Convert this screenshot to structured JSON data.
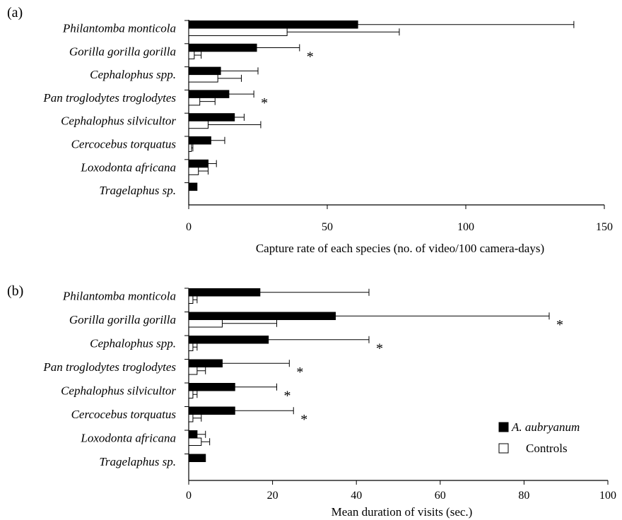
{
  "legend": {
    "items": [
      {
        "label": "A. aubryanum",
        "italic": true,
        "fill": "#000000"
      },
      {
        "label": "Controls",
        "italic": false,
        "fill": "#ffffff"
      }
    ]
  },
  "colors": {
    "treatment": "#000000",
    "control": "#ffffff",
    "stroke": "#000000"
  },
  "chart_data": [
    {
      "type": "bar",
      "orientation": "horizontal",
      "panel_label": "(a)",
      "categories": [
        "Philantomba monticola",
        "Gorilla gorilla gorilla",
        "Cephalophus spp.",
        "Pan troglodytes troglodytes",
        "Cephalophus silvicultor",
        "Cercocebus torquatus",
        "Loxodonta africana",
        "Tragelaphus sp."
      ],
      "series": [
        {
          "name": "A. aubryanum",
          "values": [
            61,
            24.5,
            11.5,
            14.5,
            16.5,
            8,
            7,
            3
          ],
          "error": [
            78,
            15.5,
            13.5,
            9,
            3.5,
            5,
            3,
            0
          ]
        },
        {
          "name": "Controls",
          "values": [
            35.5,
            2,
            10.5,
            4,
            7,
            1,
            3.5,
            0
          ],
          "error": [
            40.5,
            2.5,
            8.5,
            5.5,
            19,
            0.5,
            3.5,
            0
          ]
        }
      ],
      "significant": [
        false,
        true,
        false,
        true,
        false,
        false,
        false,
        false
      ],
      "significance_marker": "*",
      "xlabel": "Capture rate of each species (no. of video/100 camera-days)",
      "ylabel": "",
      "xlim": [
        0,
        150
      ],
      "xticks": [
        "0",
        "50",
        "100",
        "150"
      ],
      "grid": false
    },
    {
      "type": "bar",
      "orientation": "horizontal",
      "panel_label": "(b)",
      "categories": [
        "Philantomba monticola",
        "Gorilla gorilla gorilla",
        "Cephalophus spp.",
        "Pan troglodytes troglodytes",
        "Cephalophus silvicultor",
        "Cercocebus torquatus",
        "Loxodonta africana",
        "Tragelaphus sp."
      ],
      "series": [
        {
          "name": "A. aubryanum",
          "values": [
            17,
            35,
            19,
            8,
            11,
            11,
            2,
            4
          ],
          "error": [
            26,
            51,
            24,
            16,
            10,
            14,
            2,
            0
          ]
        },
        {
          "name": "Controls",
          "values": [
            1,
            8,
            1,
            2,
            1,
            1,
            3,
            0
          ],
          "error": [
            1,
            13,
            1,
            2,
            1,
            2,
            2,
            0
          ]
        }
      ],
      "significant": [
        false,
        true,
        true,
        true,
        true,
        true,
        false,
        false
      ],
      "significance_marker": "*",
      "xlabel": "Mean duration of visits (sec.)",
      "ylabel": "",
      "xlim": [
        0,
        100
      ],
      "xticks": [
        "0",
        "20",
        "40",
        "60",
        "80",
        "100"
      ],
      "grid": false,
      "legend_position": "bottom-right"
    }
  ]
}
